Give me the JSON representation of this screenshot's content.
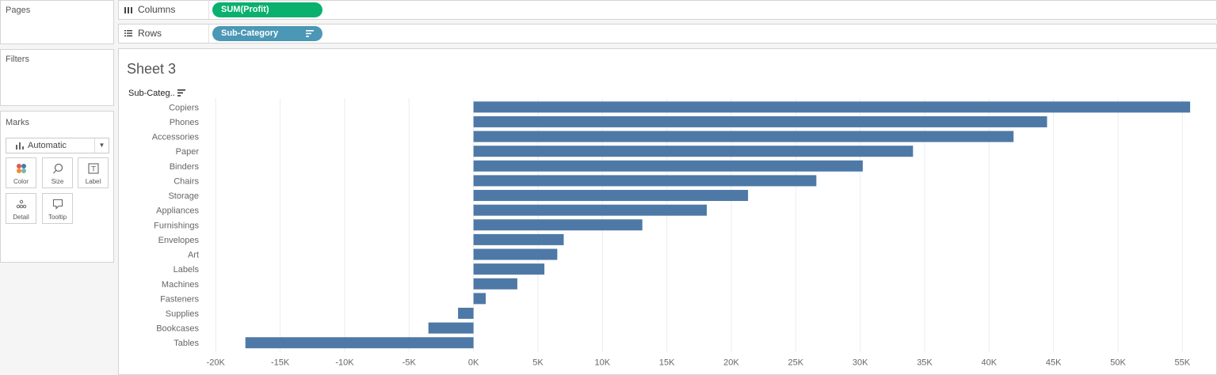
{
  "cards": {
    "pages_title": "Pages",
    "filters_title": "Filters",
    "marks_title": "Marks"
  },
  "marks": {
    "type_selected": "Automatic",
    "buttons": [
      {
        "label": "Color",
        "icon": "color-dots-icon"
      },
      {
        "label": "Size",
        "icon": "size-icon"
      },
      {
        "label": "Label",
        "icon": "label-icon"
      },
      {
        "label": "Detail",
        "icon": "detail-icon"
      },
      {
        "label": "Tooltip",
        "icon": "tooltip-icon"
      }
    ]
  },
  "shelves": {
    "columns_label": "Columns",
    "columns_pill": "SUM(Profit)",
    "rows_label": "Rows",
    "rows_pill": "Sub-Category"
  },
  "sheet": {
    "title": "Sheet 3",
    "rows_header": "Sub-Categ.."
  },
  "colors": {
    "bar": "#4e79a7",
    "measure_pill": "#0ab06e",
    "dimension_pill": "#4b97b6",
    "gridline": "#ececec"
  },
  "chart_data": {
    "type": "bar",
    "orientation": "horizontal",
    "categories": [
      "Copiers",
      "Phones",
      "Accessories",
      "Paper",
      "Binders",
      "Chairs",
      "Storage",
      "Appliances",
      "Furnishings",
      "Envelopes",
      "Art",
      "Labels",
      "Machines",
      "Fasteners",
      "Supplies",
      "Bookcases",
      "Tables"
    ],
    "values": [
      55600,
      44500,
      41900,
      34100,
      30200,
      26600,
      21300,
      18100,
      13100,
      7000,
      6500,
      5500,
      3400,
      950,
      -1200,
      -3500,
      -17700
    ],
    "x_ticks": [
      "-20K",
      "-15K",
      "-10K",
      "-5K",
      "0K",
      "5K",
      "10K",
      "15K",
      "20K",
      "25K",
      "30K",
      "35K",
      "40K",
      "45K",
      "50K",
      "55K"
    ],
    "tick_values": [
      -20000,
      -15000,
      -10000,
      -5000,
      0,
      5000,
      10000,
      15000,
      20000,
      25000,
      30000,
      35000,
      40000,
      45000,
      50000,
      55000
    ],
    "xlim": [
      -21000,
      57500
    ],
    "grid": true
  }
}
